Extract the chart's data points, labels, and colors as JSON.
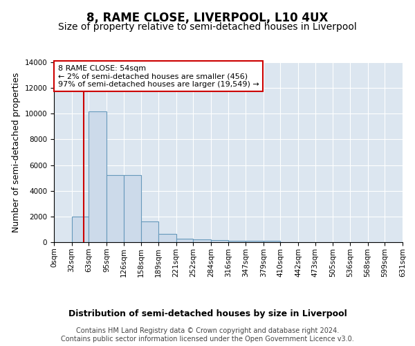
{
  "title": "8, RAME CLOSE, LIVERPOOL, L10 4UX",
  "subtitle": "Size of property relative to semi-detached houses in Liverpool",
  "xlabel": "Distribution of semi-detached houses by size in Liverpool",
  "ylabel": "Number of semi-detached properties",
  "property_size": 54,
  "bin_edges": [
    0,
    32,
    63,
    95,
    126,
    158,
    189,
    221,
    252,
    284,
    316,
    347,
    379,
    410,
    442,
    473,
    505,
    536,
    568,
    599,
    631
  ],
  "bin_labels": [
    "0sqm",
    "32sqm",
    "63sqm",
    "95sqm",
    "126sqm",
    "158sqm",
    "189sqm",
    "221sqm",
    "252sqm",
    "284sqm",
    "316sqm",
    "347sqm",
    "379sqm",
    "410sqm",
    "442sqm",
    "473sqm",
    "505sqm",
    "536sqm",
    "568sqm",
    "599sqm",
    "631sqm"
  ],
  "bar_heights": [
    0,
    2000,
    10200,
    5200,
    5200,
    1600,
    650,
    270,
    200,
    150,
    100,
    100,
    100,
    0,
    0,
    0,
    0,
    0,
    0,
    0
  ],
  "bar_color": "#ccdaea",
  "bar_edgecolor": "#6699bb",
  "redline_x": 54,
  "annotation_text": "8 RAME CLOSE: 54sqm\n← 2% of semi-detached houses are smaller (456)\n97% of semi-detached houses are larger (19,549) →",
  "annotation_box_color": "#ffffff",
  "annotation_box_edgecolor": "#cc0000",
  "redline_color": "#cc0000",
  "ylim": [
    0,
    14000
  ],
  "yticks": [
    0,
    2000,
    4000,
    6000,
    8000,
    10000,
    12000,
    14000
  ],
  "plot_bg_color": "#dce6f0",
  "fig_bg_color": "#ffffff",
  "footer_text": "Contains HM Land Registry data © Crown copyright and database right 2024.\nContains public sector information licensed under the Open Government Licence v3.0.",
  "title_fontsize": 12,
  "subtitle_fontsize": 10,
  "axis_label_fontsize": 9,
  "tick_fontsize": 7.5,
  "annotation_fontsize": 8,
  "footer_fontsize": 7
}
